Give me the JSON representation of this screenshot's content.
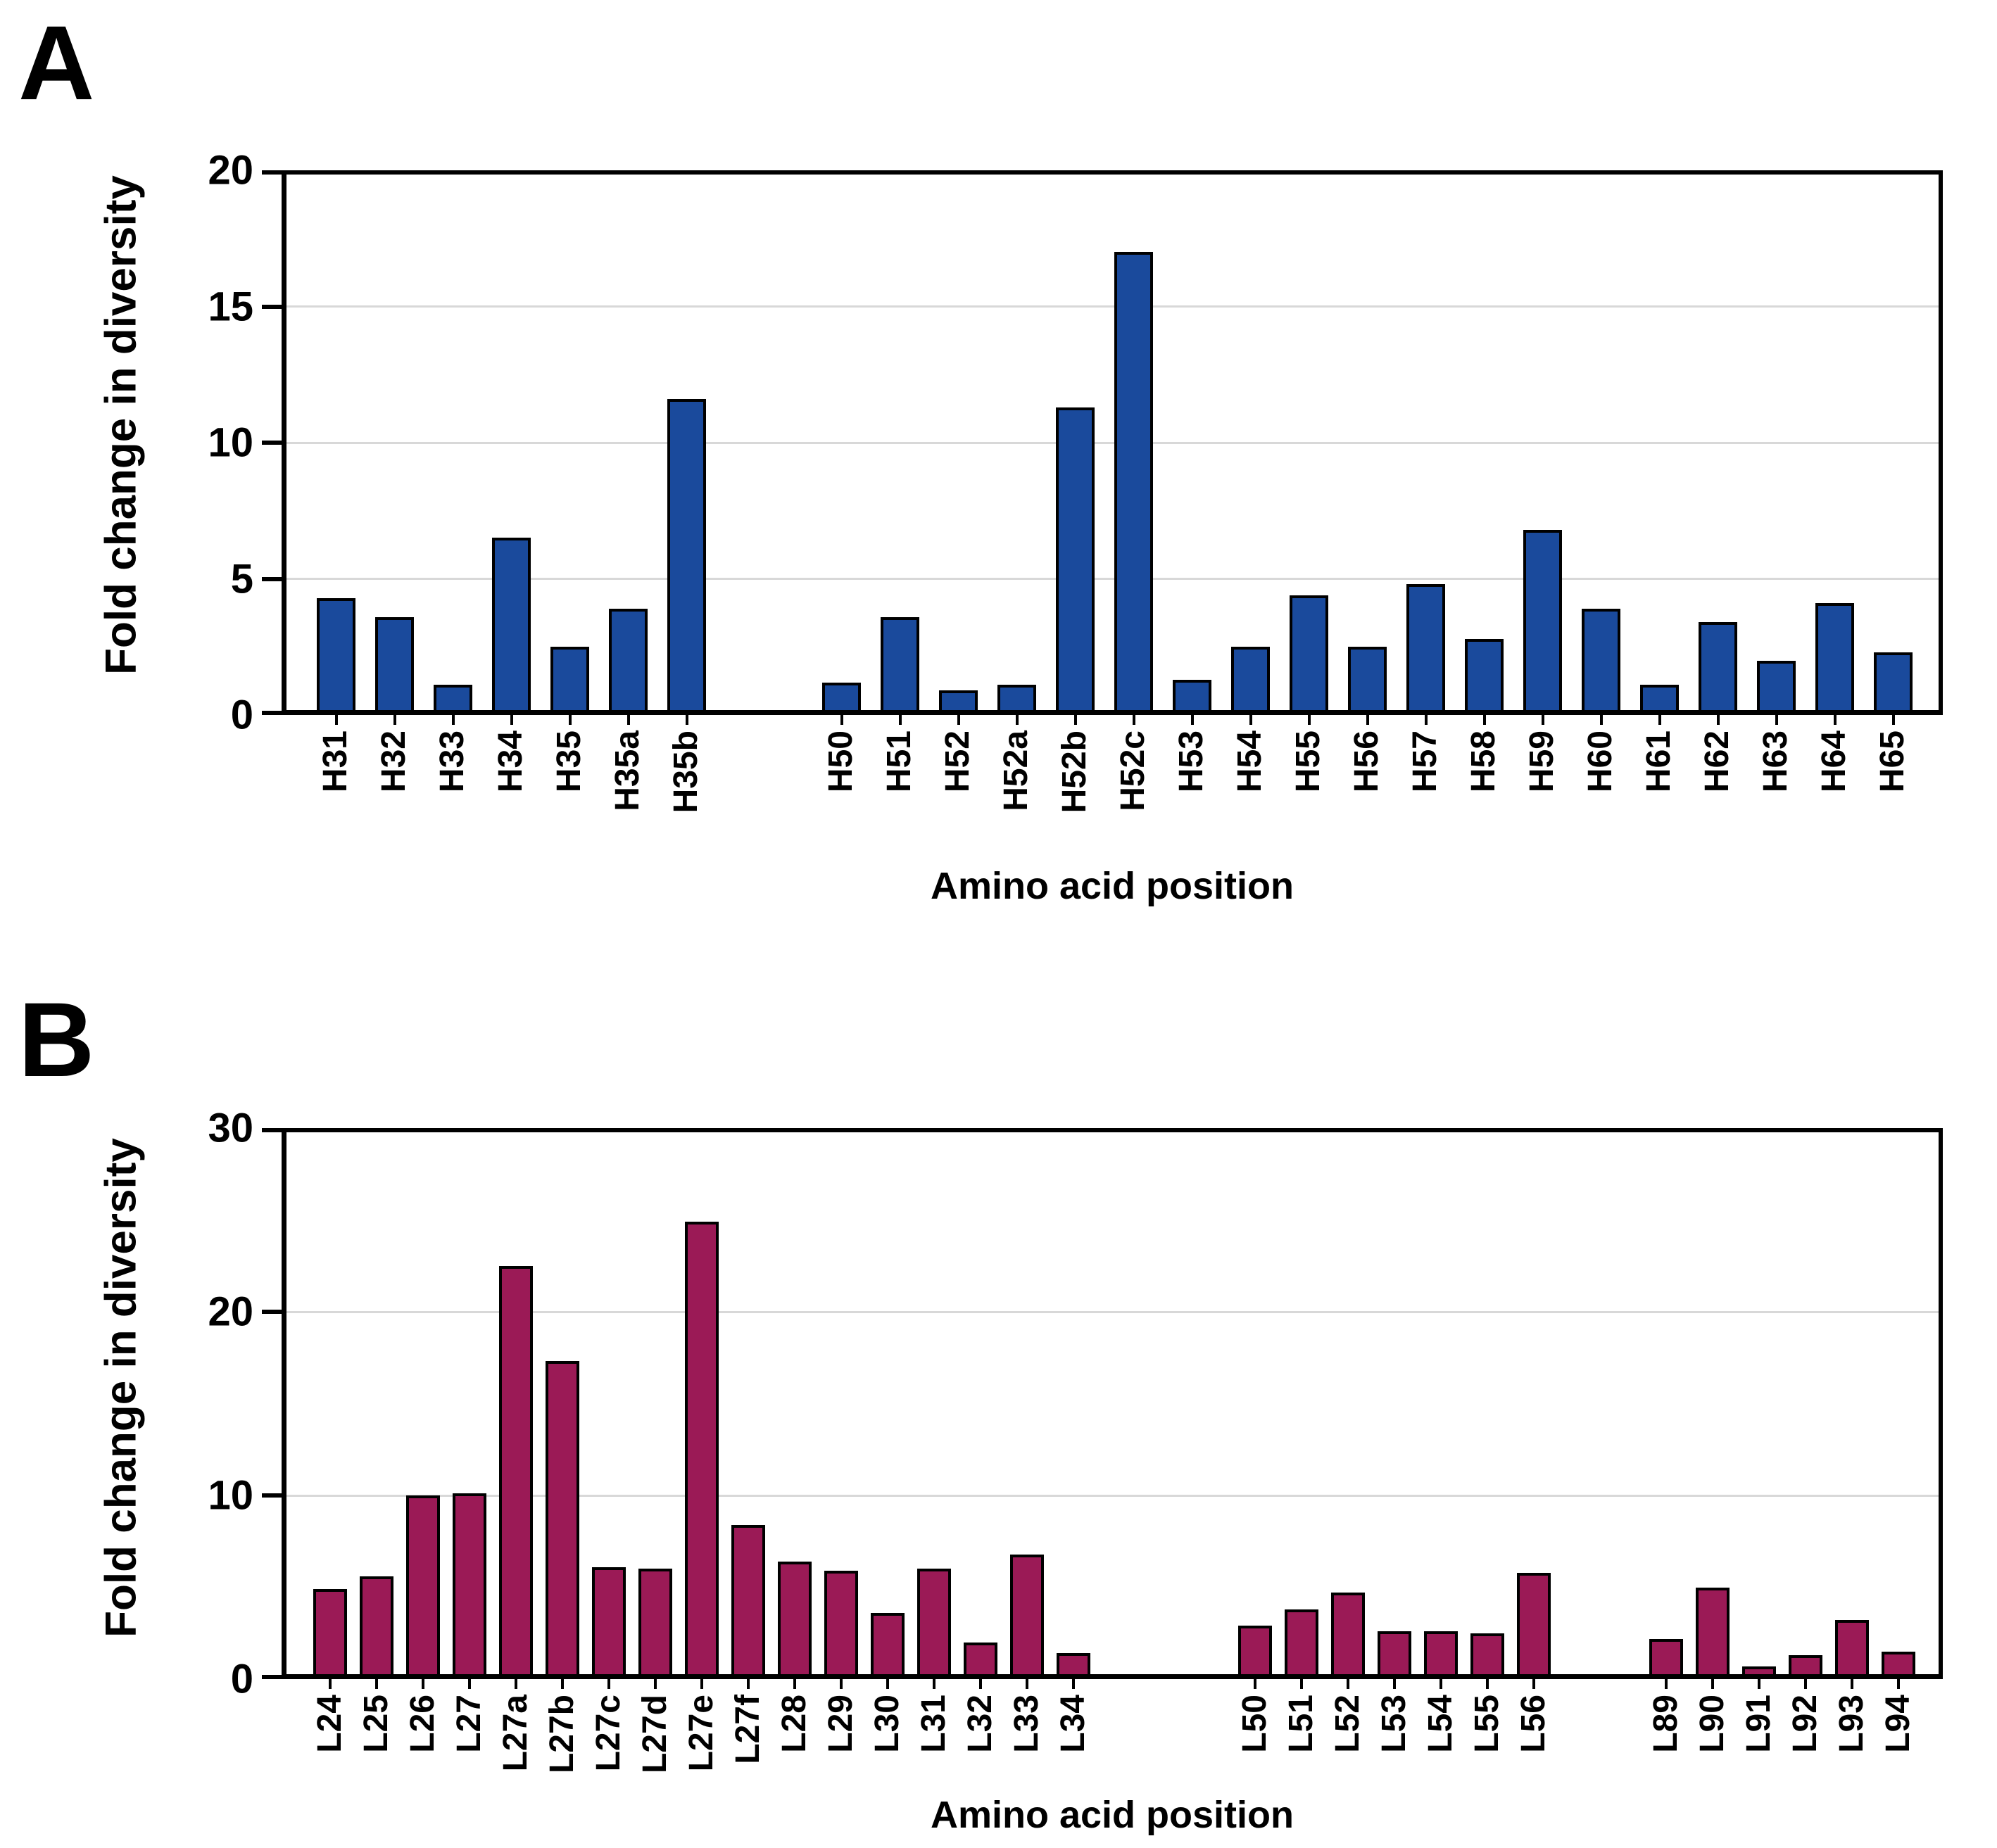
{
  "figure": {
    "panels": [
      {
        "letter": "A"
      },
      {
        "letter": "B"
      }
    ]
  },
  "chart_data": [
    {
      "type": "bar",
      "panel_label": "A",
      "title": "",
      "ylabel": "Fold change in diversity",
      "xlabel": "Amino acid position",
      "ylim": [
        0,
        20
      ],
      "yticks": [
        0,
        5,
        10,
        15,
        20
      ],
      "grid": true,
      "legend_position": "none",
      "bar_color": "#1a4a9c",
      "bar_border_color": "#000000",
      "gridline_color": "#d8d8d8",
      "categories": [
        "H31",
        "H32",
        "H33",
        "H34",
        "H35",
        "H35a",
        "H35b",
        "H50",
        "H51",
        "H52",
        "H52a",
        "H52b",
        "H52c",
        "H53",
        "H54",
        "H55",
        "H56",
        "H57",
        "H58",
        "H59",
        "H60",
        "H61",
        "H62",
        "H63",
        "H64",
        "H65"
      ],
      "values": [
        4.3,
        3.6,
        1.1,
        6.5,
        2.5,
        3.9,
        11.6,
        1.2,
        3.6,
        0.9,
        1.1,
        11.3,
        17.0,
        1.3,
        2.5,
        4.4,
        2.5,
        4.8,
        2.8,
        6.8,
        3.9,
        1.1,
        3.4,
        2.0,
        4.1,
        2.3
      ],
      "clusters": [
        [
          0,
          6
        ],
        [
          7,
          25
        ]
      ]
    },
    {
      "type": "bar",
      "panel_label": "B",
      "title": "",
      "ylabel": "Fold change in diversity",
      "xlabel": "Amino acid position",
      "ylim": [
        0,
        30
      ],
      "yticks": [
        0,
        10,
        20,
        30
      ],
      "grid": true,
      "legend_position": "none",
      "bar_color": "#9b1a56",
      "bar_border_color": "#000000",
      "gridline_color": "#d8d8d8",
      "categories": [
        "L24",
        "L25",
        "L26",
        "L27",
        "L27a",
        "L27b",
        "L27c",
        "L27d",
        "L27e",
        "L27f",
        "L28",
        "L29",
        "L30",
        "L31",
        "L32",
        "L33",
        "L34",
        "L50",
        "L51",
        "L52",
        "L53",
        "L54",
        "L55",
        "L56",
        "L89",
        "L90",
        "L91",
        "L92",
        "L93",
        "L94"
      ],
      "values": [
        4.9,
        5.6,
        10.0,
        10.1,
        22.5,
        17.3,
        6.1,
        6.0,
        24.9,
        8.4,
        6.4,
        5.9,
        3.6,
        6.0,
        2.0,
        6.8,
        1.4,
        2.9,
        3.8,
        4.7,
        2.6,
        2.6,
        2.5,
        5.8,
        2.2,
        5.0,
        0.7,
        1.3,
        3.2,
        1.5
      ],
      "clusters": [
        [
          0,
          16
        ],
        [
          17,
          23
        ],
        [
          24,
          29
        ]
      ]
    }
  ]
}
